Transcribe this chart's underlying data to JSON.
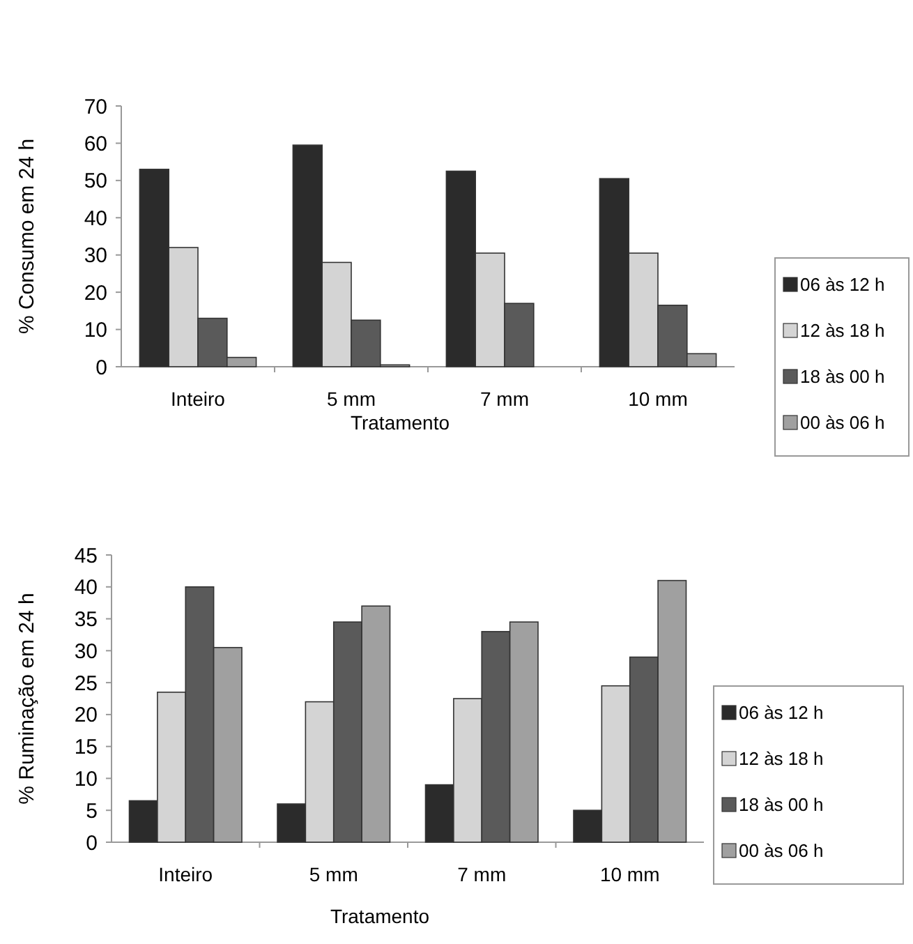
{
  "chart_data": [
    {
      "type": "bar",
      "ylabel": "% Consumo em 24 h",
      "xlabel": "Tratamento",
      "categories": [
        "Inteiro",
        "5 mm",
        "7 mm",
        "10 mm"
      ],
      "ylim": [
        0,
        70
      ],
      "yticks": [
        0,
        10,
        20,
        30,
        40,
        50,
        60,
        70
      ],
      "legend": "right",
      "series": [
        {
          "name": "06 às 12 h",
          "color": "#2b2b2b",
          "values": [
            53,
            59.5,
            52.5,
            50.5
          ]
        },
        {
          "name": "12 às 18 h",
          "color": "#d4d4d4",
          "values": [
            32,
            28,
            30.5,
            30.5
          ]
        },
        {
          "name": "18 às 00 h",
          "color": "#5a5a5a",
          "values": [
            13,
            12.5,
            17,
            16.5
          ]
        },
        {
          "name": "00 às 06 h",
          "color": "#a0a0a0",
          "values": [
            2.5,
            0.5,
            0,
            3.5
          ]
        }
      ]
    },
    {
      "type": "bar",
      "ylabel": "% Ruminação em 24 h",
      "xlabel": "Tratamento",
      "categories": [
        "Inteiro",
        "5 mm",
        "7 mm",
        "10 mm"
      ],
      "ylim": [
        0,
        45
      ],
      "yticks": [
        0,
        5,
        10,
        15,
        20,
        25,
        30,
        35,
        40,
        45
      ],
      "legend": "right",
      "series": [
        {
          "name": "06 às 12 h",
          "color": "#2b2b2b",
          "values": [
            6.5,
            6,
            9,
            5
          ]
        },
        {
          "name": "12 às 18 h",
          "color": "#d4d4d4",
          "values": [
            23.5,
            22,
            22.5,
            24.5
          ]
        },
        {
          "name": "18 às 00 h",
          "color": "#5a5a5a",
          "values": [
            40,
            34.5,
            33,
            29
          ]
        },
        {
          "name": "00 às 06 h",
          "color": "#a0a0a0",
          "values": [
            30.5,
            37,
            34.5,
            41
          ]
        }
      ]
    }
  ]
}
